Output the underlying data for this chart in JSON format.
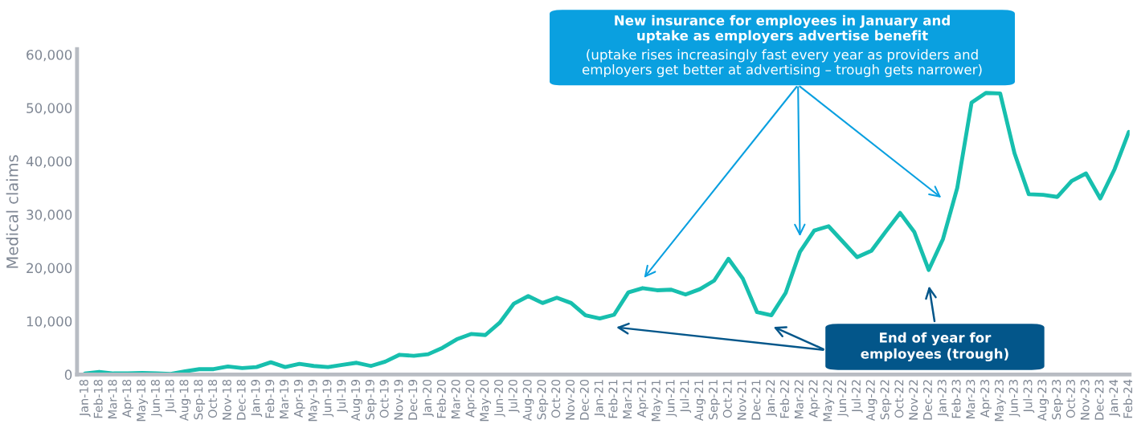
{
  "chart_data": {
    "type": "line",
    "categories": [
      "Jan-18",
      "Feb-18",
      "Mar-18",
      "Apr-18",
      "May-18",
      "Jun-18",
      "Jul-18",
      "Aug-18",
      "Sep-18",
      "Oct-18",
      "Nov-18",
      "Dec-18",
      "Jan-19",
      "Feb-19",
      "Mar-19",
      "Apr-19",
      "May-19",
      "Jun-19",
      "Jul-19",
      "Aug-19",
      "Sep-19",
      "Oct-19",
      "Nov-19",
      "Dec-19",
      "Jan-20",
      "Feb-20",
      "Mar-20",
      "Apr-20",
      "May-20",
      "Jun-20",
      "Jul-20",
      "Aug-20",
      "Sep-20",
      "Oct-20",
      "Nov-20",
      "Dec-20",
      "Jan-21",
      "Feb-21",
      "Mar-21",
      "Apr-21",
      "May-21",
      "Jun-21",
      "Jul-21",
      "Aug-21",
      "Sep-21",
      "Oct-21",
      "Nov-21",
      "Dec-21",
      "Jan-22",
      "Feb-22",
      "Mar-22",
      "Apr-22",
      "May-22",
      "Jun-22",
      "Jul-22",
      "Aug-22",
      "Sep-22",
      "Oct-22",
      "Nov-22",
      "Dec-22",
      "Jan-23",
      "Feb-23",
      "Mar-23",
      "Apr-23",
      "May-23",
      "Jun-23",
      "Jul-23",
      "Aug-23",
      "Sep-23",
      "Oct-23",
      "Nov-23",
      "Dec-23",
      "Jan-24",
      "Feb-24"
    ],
    "series": [
      {
        "color": "#17bfae",
        "values": [
          200,
          500,
          200,
          200,
          300,
          200,
          100,
          600,
          1000,
          1000,
          1500,
          1200,
          1400,
          2300,
          1400,
          2000,
          1600,
          1400,
          1800,
          2200,
          1600,
          2400,
          3700,
          3500,
          3800,
          5000,
          6600,
          7600,
          7400,
          9700,
          13300,
          14700,
          13400,
          14400,
          13400,
          11100,
          10500,
          11200,
          15400,
          16200,
          15800,
          15900,
          15000,
          16000,
          17600,
          21700,
          18000,
          11700,
          11100,
          15300,
          23000,
          27000,
          27800,
          24900,
          22000,
          23200,
          26800,
          30300,
          26700,
          19600,
          25400,
          35000,
          51000,
          52800,
          52700,
          41500,
          33800,
          33700,
          33300,
          36300,
          37700,
          33000,
          38500,
          45500
        ]
      }
    ],
    "ylabel": "Medical claims",
    "ylim": [
      0,
      61000
    ],
    "yticks": [
      0,
      {
        "value": 10000,
        "label": "10,000"
      },
      {
        "value": 20000,
        "label": "20,000"
      },
      {
        "value": 30000,
        "label": "30,000"
      },
      {
        "value": 40000,
        "label": "40,000"
      },
      {
        "value": 50000,
        "label": "50,000"
      },
      {
        "value": 60000,
        "label": "60,000"
      }
    ],
    "grid": false,
    "legend": false,
    "marker": "none",
    "line_style": "solid",
    "annotations": [
      "New insurance for employees in January and\nuptake as employers advertise benefit",
      "(uptake rises increasingly fast every year as providers and\nemployers get better at advertising – trough gets narrower)",
      "End of year for\nemployees (trough)"
    ]
  }
}
